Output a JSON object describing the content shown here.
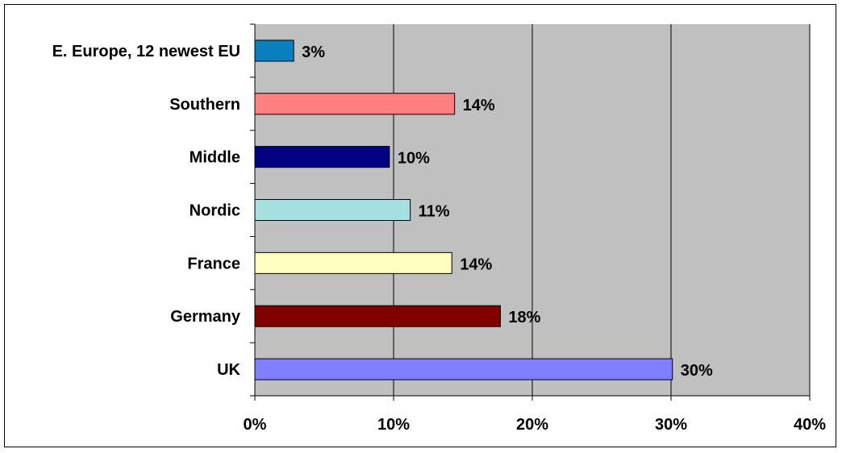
{
  "chart_data": {
    "type": "bar",
    "orientation": "horizontal",
    "categories": [
      "E. Europe, 12 newest EU",
      "Southern",
      "Middle",
      "Nordic",
      "France",
      "Germany",
      "UK"
    ],
    "values": [
      0.03,
      0.14,
      0.1,
      0.11,
      0.14,
      0.18,
      0.3
    ],
    "data_labels": [
      "3%",
      "14%",
      "10%",
      "11%",
      "14%",
      "18%",
      "30%"
    ],
    "bar_values": [
      0.028,
      0.144,
      0.097,
      0.112,
      0.142,
      0.177,
      0.301
    ],
    "colors": [
      "#0a7fc0",
      "#ff8080",
      "#000080",
      "#a6e0e0",
      "#ffffc0",
      "#800000",
      "#8080ff"
    ],
    "xlim": [
      0,
      0.4
    ],
    "x_ticks": [
      0,
      0.1,
      0.2,
      0.3,
      0.4
    ],
    "x_tick_labels": [
      "0%",
      "10%",
      "20%",
      "30%",
      "40%"
    ],
    "plot_background": "#c0c0c0",
    "grid": "vertical",
    "legend": "none",
    "title": "",
    "xlabel": "",
    "ylabel": ""
  }
}
